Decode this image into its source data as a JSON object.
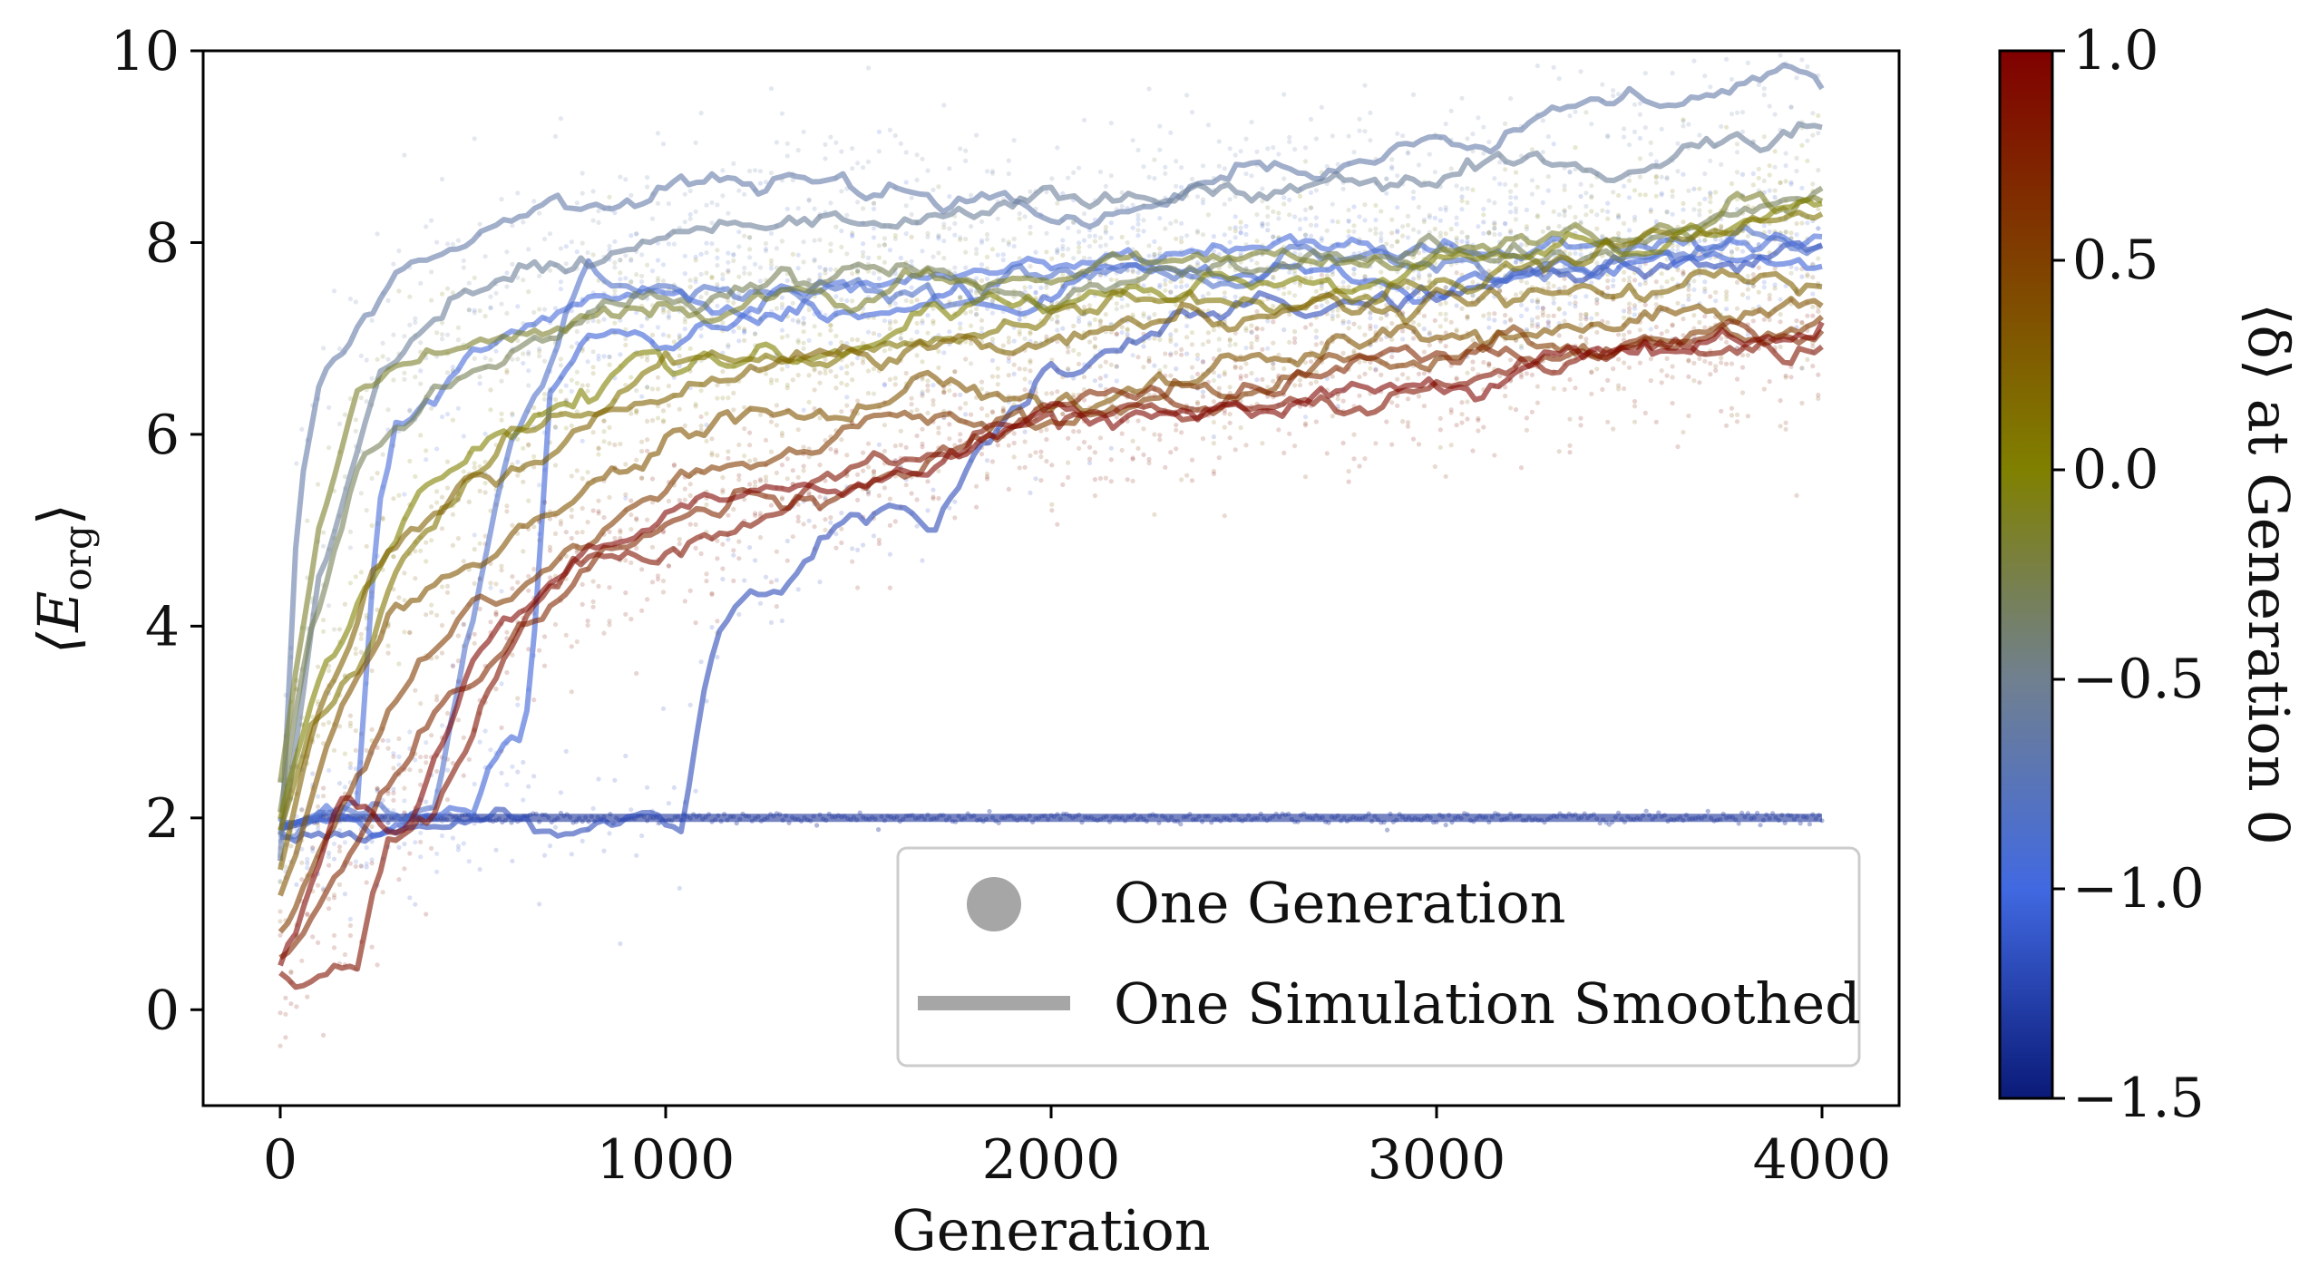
{
  "chart_data": {
    "type": "scatter",
    "xlabel": "Generation",
    "ylabel": "⟨E_org⟩",
    "ylabel_main": "⟨E",
    "ylabel_sub": "org",
    "ylabel_close": "⟩",
    "xlim": [
      -200,
      4200
    ],
    "ylim": [
      -1,
      10
    ],
    "x_ticks": [
      0,
      1000,
      2000,
      3000,
      4000
    ],
    "x_tick_labels": [
      "0",
      "1000",
      "2000",
      "3000",
      "4000"
    ],
    "y_ticks": [
      0,
      2,
      4,
      6,
      8,
      10
    ],
    "y_tick_labels": [
      "0",
      "2",
      "4",
      "6",
      "8",
      "10"
    ],
    "grid": false,
    "legend_position": "lower-right",
    "legend": [
      {
        "label": "One Generation",
        "marker": "circle",
        "color": "#a6a6a6"
      },
      {
        "label": "One Simulation Smoothed",
        "marker": "line",
        "color": "#a6a6a6"
      }
    ],
    "colorbar": {
      "label": "⟨δ⟩ at Generation 0",
      "range": [
        -1.5,
        1.0
      ],
      "ticks": [
        1.0,
        0.5,
        0.0,
        -0.5,
        -1.0,
        -1.5
      ],
      "tick_labels": [
        "1.0",
        "0.5",
        "0.0",
        "−0.5",
        "−1.0",
        "−1.5"
      ],
      "colors": [
        {
          "value": -1.5,
          "color": "#0a1a78"
        },
        {
          "value": -1.0,
          "color": "#4169e1"
        },
        {
          "value": -0.5,
          "color": "#708090"
        },
        {
          "value": 0.0,
          "color": "#808000"
        },
        {
          "value": 1.0,
          "color": "#800000"
        }
      ]
    },
    "series": [
      {
        "delta": -1.35,
        "points": [
          [
            0,
            1.9
          ],
          [
            100,
            2.0
          ],
          [
            1000,
            2.0
          ],
          [
            2000,
            2.0
          ],
          [
            3000,
            2.0
          ],
          [
            4000,
            2.0
          ]
        ]
      },
      {
        "delta": -1.2,
        "points": [
          [
            0,
            1.85
          ],
          [
            1000,
            2.0
          ],
          [
            1040,
            2.05
          ],
          [
            1100,
            3.5
          ],
          [
            1150,
            4.3
          ],
          [
            1300,
            4.5
          ],
          [
            1400,
            5.0
          ],
          [
            1500,
            5.3
          ],
          [
            1700,
            5.2
          ],
          [
            1800,
            6.0
          ],
          [
            2000,
            6.6
          ],
          [
            2500,
            7.2
          ],
          [
            3000,
            7.5
          ],
          [
            4000,
            7.9
          ]
        ]
      },
      {
        "delta": -1.05,
        "points": [
          [
            0,
            1.9
          ],
          [
            500,
            2.1
          ],
          [
            560,
            2.7
          ],
          [
            620,
            2.9
          ],
          [
            650,
            3.5
          ],
          [
            700,
            6.5
          ],
          [
            800,
            7.0
          ],
          [
            1200,
            7.3
          ],
          [
            2000,
            7.4
          ],
          [
            3000,
            7.6
          ],
          [
            4000,
            7.8
          ]
        ]
      },
      {
        "delta": -0.95,
        "points": [
          [
            0,
            1.9
          ],
          [
            200,
            2.1
          ],
          [
            250,
            5.0
          ],
          [
            300,
            6.0
          ],
          [
            500,
            6.8
          ],
          [
            1000,
            7.5
          ],
          [
            2000,
            7.7
          ],
          [
            3000,
            8.0
          ],
          [
            4000,
            8.1
          ]
        ]
      },
      {
        "delta": -0.85,
        "points": [
          [
            0,
            1.9
          ],
          [
            400,
            2.2
          ],
          [
            480,
            4.0
          ],
          [
            600,
            6.0
          ],
          [
            700,
            6.6
          ],
          [
            800,
            7.5
          ],
          [
            1500,
            7.6
          ],
          [
            2500,
            7.8
          ],
          [
            3500,
            8.0
          ],
          [
            4000,
            7.9
          ]
        ]
      },
      {
        "delta": -0.65,
        "points": [
          [
            0,
            1.6
          ],
          [
            50,
            5.5
          ],
          [
            100,
            6.4
          ],
          [
            300,
            7.8
          ],
          [
            600,
            8.2
          ],
          [
            1000,
            8.4
          ],
          [
            1500,
            8.7
          ],
          [
            2000,
            8.5
          ],
          [
            2500,
            8.7
          ],
          [
            3000,
            8.9
          ],
          [
            3500,
            9.4
          ],
          [
            3800,
            9.6
          ],
          [
            3900,
            9.8
          ],
          [
            4000,
            9.6
          ]
        ]
      },
      {
        "delta": -0.55,
        "points": [
          [
            0,
            1.8
          ],
          [
            100,
            4.5
          ],
          [
            250,
            6.5
          ],
          [
            500,
            7.5
          ],
          [
            1000,
            8.2
          ],
          [
            2000,
            8.4
          ],
          [
            3000,
            8.6
          ],
          [
            4000,
            9.2
          ]
        ]
      },
      {
        "delta": -0.3,
        "points": [
          [
            0,
            2.0
          ],
          [
            80,
            4.0
          ],
          [
            200,
            5.6
          ],
          [
            400,
            6.6
          ],
          [
            800,
            7.3
          ],
          [
            1500,
            7.6
          ],
          [
            2500,
            7.8
          ],
          [
            3500,
            8.1
          ],
          [
            4000,
            8.5
          ]
        ]
      },
      {
        "delta": -0.15,
        "points": [
          [
            0,
            2.4
          ],
          [
            100,
            5.0
          ],
          [
            200,
            6.4
          ],
          [
            400,
            7.0
          ],
          [
            1000,
            7.3
          ],
          [
            2000,
            7.6
          ],
          [
            3000,
            8.0
          ],
          [
            4000,
            8.4
          ]
        ]
      },
      {
        "delta": 0.0,
        "points": [
          [
            0,
            2.0
          ],
          [
            100,
            3.5
          ],
          [
            200,
            4.4
          ],
          [
            400,
            5.8
          ],
          [
            800,
            6.5
          ],
          [
            1500,
            7.0
          ],
          [
            2500,
            7.5
          ],
          [
            3500,
            8.0
          ],
          [
            4000,
            8.5
          ]
        ]
      },
      {
        "delta": 0.1,
        "points": [
          [
            0,
            1.8
          ],
          [
            80,
            3.0
          ],
          [
            200,
            3.6
          ],
          [
            300,
            4.5
          ],
          [
            600,
            5.8
          ],
          [
            1000,
            6.8
          ],
          [
            2000,
            7.2
          ],
          [
            3000,
            7.6
          ],
          [
            4000,
            8.2
          ]
        ]
      },
      {
        "delta": 0.25,
        "points": [
          [
            0,
            1.5
          ],
          [
            100,
            3.2
          ],
          [
            250,
            4.6
          ],
          [
            500,
            5.4
          ],
          [
            1000,
            6.4
          ],
          [
            2000,
            7.0
          ],
          [
            3000,
            7.4
          ],
          [
            4000,
            7.6
          ]
        ]
      },
      {
        "delta": 0.35,
        "points": [
          [
            0,
            1.2
          ],
          [
            150,
            3.0
          ],
          [
            300,
            4.2
          ],
          [
            600,
            5.0
          ],
          [
            1000,
            5.8
          ],
          [
            2000,
            6.6
          ],
          [
            3000,
            7.0
          ],
          [
            4000,
            7.3
          ]
        ]
      },
      {
        "delta": 0.55,
        "points": [
          [
            0,
            0.8
          ],
          [
            150,
            2.0
          ],
          [
            300,
            3.2
          ],
          [
            500,
            4.2
          ],
          [
            900,
            5.2
          ],
          [
            1500,
            6.0
          ],
          [
            2500,
            6.6
          ],
          [
            3500,
            7.0
          ],
          [
            4000,
            7.2
          ]
        ]
      },
      {
        "delta": 0.7,
        "points": [
          [
            0,
            0.5
          ],
          [
            200,
            1.8
          ],
          [
            400,
            3.0
          ],
          [
            700,
            4.4
          ],
          [
            1000,
            5.0
          ],
          [
            1600,
            5.6
          ],
          [
            2000,
            6.2
          ],
          [
            3000,
            6.8
          ],
          [
            4000,
            7.0
          ]
        ]
      },
      {
        "delta": 0.85,
        "points": [
          [
            0,
            0.4
          ],
          [
            100,
            0.5
          ],
          [
            200,
            0.6
          ],
          [
            280,
            1.8
          ],
          [
            400,
            2.2
          ],
          [
            700,
            4.4
          ],
          [
            1000,
            4.8
          ],
          [
            1400,
            5.2
          ],
          [
            2000,
            6.0
          ],
          [
            3000,
            6.6
          ],
          [
            4000,
            6.9
          ]
        ]
      },
      {
        "delta": 0.95,
        "points": [
          [
            0,
            0.5
          ],
          [
            150,
            2.0
          ],
          [
            350,
            2.1
          ],
          [
            500,
            3.6
          ],
          [
            700,
            4.6
          ],
          [
            1200,
            5.4
          ],
          [
            2000,
            6.0
          ],
          [
            2500,
            6.4
          ],
          [
            3000,
            6.6
          ],
          [
            3500,
            6.8
          ],
          [
            4000,
            7.0
          ]
        ]
      }
    ]
  }
}
